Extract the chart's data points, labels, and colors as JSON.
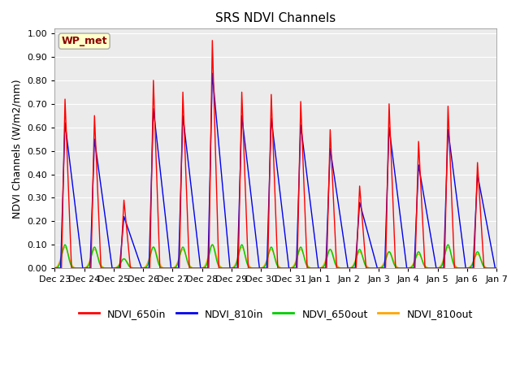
{
  "title": "SRS NDVI Channels",
  "ylabel": "NDVI Channels (W/m2/mm)",
  "annotation": "WP_met",
  "annotation_color": "#8B0000",
  "annotation_bg": "#FFFFCC",
  "annotation_edge": "#AAAAAA",
  "background_color": "#E8E8E8",
  "plot_bg": "#EBEBEB",
  "ylim": [
    0.0,
    1.02
  ],
  "legend_labels": [
    "NDVI_650in",
    "NDVI_810in",
    "NDVI_650out",
    "NDVI_810out"
  ],
  "legend_colors": [
    "#FF0000",
    "#0000EE",
    "#00CC00",
    "#FFA500"
  ],
  "tick_labels": [
    "Dec 23",
    "Dec 24",
    "Dec 25",
    "Dec 26",
    "Dec 27",
    "Dec 28",
    "Dec 29",
    "Dec 30",
    "Dec 31",
    "Jan 1",
    "Jan 2",
    "Jan 3",
    "Jan 4",
    "Jan 5",
    "Jan 6",
    "Jan 7"
  ],
  "yticks": [
    0.0,
    0.1,
    0.2,
    0.3,
    0.4,
    0.5,
    0.6,
    0.7,
    0.8,
    0.9,
    1.0
  ],
  "peaks_650in": [
    0.72,
    0.65,
    0.29,
    0.8,
    0.75,
    0.97,
    0.75,
    0.74,
    0.71,
    0.59,
    0.35,
    0.7,
    0.54,
    0.69,
    0.45
  ],
  "peaks_810in": [
    0.62,
    0.55,
    0.22,
    0.68,
    0.65,
    0.83,
    0.65,
    0.64,
    0.61,
    0.51,
    0.28,
    0.6,
    0.44,
    0.59,
    0.4
  ],
  "peaks_650out": [
    0.1,
    0.09,
    0.04,
    0.09,
    0.09,
    0.1,
    0.1,
    0.09,
    0.09,
    0.08,
    0.08,
    0.07,
    0.07,
    0.1,
    0.07
  ],
  "peaks_810out": [
    0.09,
    0.08,
    0.04,
    0.09,
    0.08,
    0.1,
    0.09,
    0.08,
    0.08,
    0.08,
    0.07,
    0.07,
    0.06,
    0.09,
    0.06
  ]
}
